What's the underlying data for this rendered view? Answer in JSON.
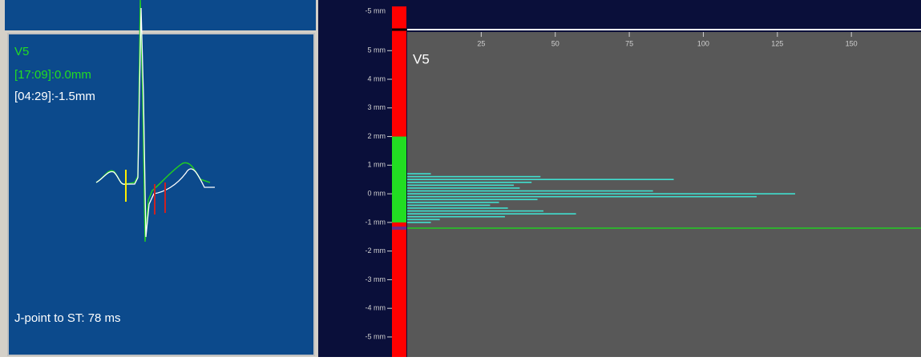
{
  "left_panel": {
    "lead": "V5",
    "current": "[17:09]:0.0mm",
    "reference": "[04:29]:-1.5mm",
    "footer": "J-point to ST: 78 ms"
  },
  "overview_label": "-5 mm",
  "chart_data": {
    "type": "histogram-horizontal",
    "title": "V5",
    "bin_centers": [
      0.7,
      0.6,
      0.5,
      0.4,
      0.3,
      0.2,
      0.1,
      0.0,
      -0.1,
      -0.2,
      -0.3,
      -0.4,
      -0.5,
      -0.6,
      -0.7,
      -0.8,
      -0.9,
      -1.0
    ],
    "values": [
      8,
      45,
      90,
      42,
      36,
      38,
      83,
      131,
      118,
      44,
      31,
      28,
      34,
      46,
      57,
      33,
      11,
      8
    ],
    "color": "#40e0d0",
    "xlim": [
      0,
      173.5
    ],
    "xticks": [
      25,
      50,
      75,
      100,
      125,
      150
    ],
    "ylim": [
      -5.7,
      5.65
    ],
    "yticks": [
      {
        "value": 5,
        "label": "5 mm"
      },
      {
        "value": 4,
        "label": "4 mm"
      },
      {
        "value": 3,
        "label": "3 mm"
      },
      {
        "value": 2,
        "label": "2 mm"
      },
      {
        "value": 1,
        "label": "1 mm"
      },
      {
        "value": 0,
        "label": "0 mm"
      },
      {
        "value": -1,
        "label": "-1 mm"
      },
      {
        "value": -2,
        "label": "-2 mm"
      },
      {
        "value": -3,
        "label": "-3 mm"
      },
      {
        "value": -4,
        "label": "-4 mm"
      },
      {
        "value": -5,
        "label": "-5 mm"
      }
    ],
    "threshold": -1.2,
    "threshold_color": "#22cc22",
    "normal_range": [
      -1,
      2
    ],
    "normal_color": "#22dd22",
    "bar_color": "#ff0000"
  }
}
